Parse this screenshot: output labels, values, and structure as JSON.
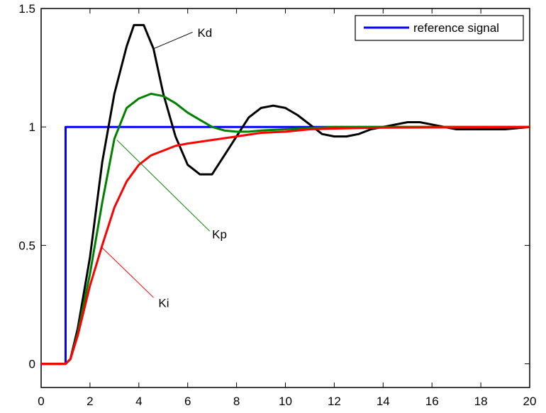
{
  "chart_data": {
    "type": "line",
    "title": "",
    "xlabel": "",
    "ylabel": "",
    "xlim": [
      0,
      20
    ],
    "ylim": [
      -0.1,
      1.5
    ],
    "grid": false,
    "xticks": [
      "0",
      "2",
      "4",
      "6",
      "8",
      "10",
      "12",
      "14",
      "16",
      "18",
      "20"
    ],
    "xtick_values": [
      0,
      2,
      4,
      6,
      8,
      10,
      12,
      14,
      16,
      18,
      20
    ],
    "yticks": [
      "0",
      "0.5",
      "1",
      "1.5"
    ],
    "ytick_values": [
      0,
      0.5,
      1,
      1.5
    ],
    "legend": {
      "placement": "top-right",
      "entries": [
        "reference signal"
      ]
    },
    "series": [
      {
        "name": "reference signal",
        "color": "#0000ff",
        "in_legend": true,
        "x": [
          0,
          1,
          1,
          20
        ],
        "y": [
          0,
          0,
          1,
          1
        ]
      },
      {
        "name": "Kd",
        "color": "#000000",
        "in_legend": false,
        "x": [
          0,
          1,
          1.2,
          1.5,
          2,
          2.5,
          3,
          3.5,
          3.8,
          4.2,
          4.6,
          5,
          5.5,
          6,
          6.5,
          7,
          7.5,
          8,
          8.5,
          9,
          9.5,
          10,
          10.5,
          11,
          11.5,
          12,
          12.5,
          13,
          13.5,
          14,
          14.5,
          15,
          15.5,
          16,
          16.5,
          17,
          19,
          20
        ],
        "y": [
          0,
          0,
          0.02,
          0.15,
          0.45,
          0.85,
          1.14,
          1.34,
          1.43,
          1.43,
          1.33,
          1.14,
          0.96,
          0.84,
          0.8,
          0.8,
          0.88,
          0.96,
          1.04,
          1.08,
          1.09,
          1.08,
          1.05,
          1.01,
          0.97,
          0.96,
          0.96,
          0.97,
          0.99,
          1.0,
          1.01,
          1.02,
          1.02,
          1.01,
          1.0,
          0.99,
          0.99,
          1.0
        ]
      },
      {
        "name": "Kp",
        "color": "#008000",
        "in_legend": false,
        "x": [
          0,
          1,
          1.2,
          1.5,
          2,
          2.5,
          3,
          3.5,
          4,
          4.5,
          5,
          5.5,
          6,
          6.5,
          7,
          7.5,
          8,
          8.5,
          9,
          10,
          11,
          12,
          20
        ],
        "y": [
          0,
          0,
          0.02,
          0.13,
          0.38,
          0.68,
          0.95,
          1.08,
          1.12,
          1.14,
          1.13,
          1.1,
          1.06,
          1.03,
          1.0,
          0.985,
          0.98,
          0.98,
          0.985,
          0.99,
          0.995,
          1.0,
          1.0
        ]
      },
      {
        "name": "Ki",
        "color": "#ff0000",
        "in_legend": false,
        "x": [
          0,
          1,
          1.2,
          1.5,
          2,
          2.5,
          3,
          3.5,
          4,
          4.5,
          5,
          5.5,
          6,
          7,
          8,
          9,
          10,
          11,
          12,
          14,
          16,
          20
        ],
        "y": [
          0,
          0,
          0.02,
          0.12,
          0.33,
          0.5,
          0.66,
          0.77,
          0.84,
          0.88,
          0.9,
          0.92,
          0.93,
          0.945,
          0.96,
          0.975,
          0.98,
          0.99,
          0.993,
          0.997,
          0.998,
          1.0
        ]
      }
    ],
    "annotations": [
      {
        "text": "Kd",
        "color": "#000000",
        "text_at": [
          6.4,
          1.38
        ],
        "arrow_from": [
          6.2,
          1.4
        ],
        "arrow_to": [
          4.6,
          1.33
        ]
      },
      {
        "text": "Kp",
        "color": "#008000",
        "text_at": [
          7.0,
          0.53
        ],
        "arrow_from": [
          6.9,
          0.56
        ],
        "arrow_to": [
          3.1,
          0.945
        ]
      },
      {
        "text": "Ki",
        "color": "#ff0000",
        "text_at": [
          4.8,
          0.24
        ],
        "arrow_from": [
          4.6,
          0.28
        ],
        "arrow_to": [
          2.5,
          0.49
        ]
      }
    ]
  }
}
